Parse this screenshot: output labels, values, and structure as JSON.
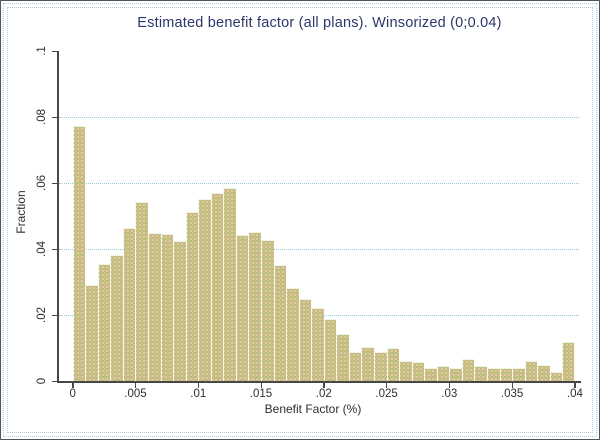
{
  "window": {
    "background": "#ffffff",
    "frame_border_color": "#53575c",
    "selection_dots_color": "#a9cde2"
  },
  "chart_data": {
    "type": "bar",
    "subtype": "histogram",
    "title": "Estimated benefit factor (all plans). Winsorized (0;0.04)",
    "xlabel": "Benefit Factor (%)",
    "ylabel": "Fraction",
    "xlim": [
      0,
      0.04
    ],
    "ylim": [
      0,
      0.1
    ],
    "x_tick_labels": [
      "0",
      ".005",
      ".01",
      ".015",
      ".02",
      ".025",
      ".03",
      ".035",
      ".04"
    ],
    "x_tick_values": [
      0,
      0.005,
      0.01,
      0.015,
      0.02,
      0.025,
      0.03,
      0.035,
      0.04
    ],
    "y_tick_labels": [
      "0",
      ".02",
      ".04",
      ".06",
      ".08",
      ".1"
    ],
    "y_tick_values": [
      0,
      0.02,
      0.04,
      0.06,
      0.08,
      0.1
    ],
    "gridline_values": [
      0.02,
      0.04,
      0.06,
      0.08
    ],
    "grid": "horizontal dotted",
    "legend_position": "none",
    "bin_start": 0,
    "bin_width": 0.001,
    "n_bins": 40,
    "values": [
      0.0773,
      0.0293,
      0.0356,
      0.0383,
      0.0466,
      0.0542,
      0.0451,
      0.0448,
      0.0424,
      0.0512,
      0.0552,
      0.0572,
      0.0587,
      0.0443,
      0.0452,
      0.0428,
      0.0354,
      0.0283,
      0.025,
      0.0221,
      0.0189,
      0.0143,
      0.0089,
      0.0103,
      0.0089,
      0.0101,
      0.0062,
      0.0058,
      0.004,
      0.0048,
      0.004,
      0.0068,
      0.0046,
      0.004,
      0.004,
      0.004,
      0.0062,
      0.005,
      0.0029,
      0.0119
    ],
    "colors": {
      "bar_fill": "#c9c184",
      "bar_edge": "#ffffff",
      "gridline": "#8fd0dc",
      "title_text": "#2b3769",
      "axis_line": "#474747",
      "tick_text": "#2f2f2f"
    }
  }
}
